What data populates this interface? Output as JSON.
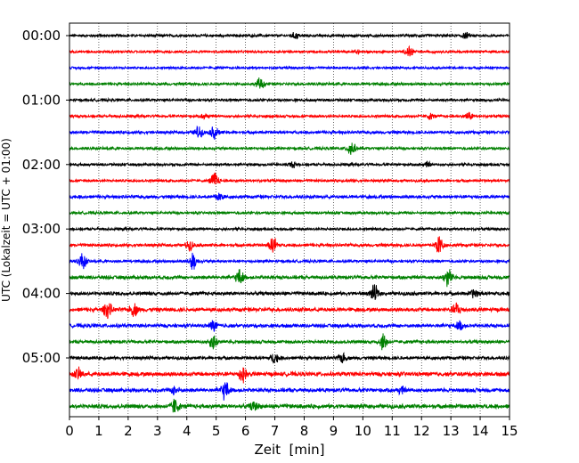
{
  "chart_data": {
    "type": "line",
    "title": "",
    "xlabel": "Zeit  [min]",
    "ylabel": "UTC (Lokalzeit = UTC + 01:00)",
    "xlim": [
      0,
      15
    ],
    "x_ticks": [
      "0",
      "1",
      "2",
      "3",
      "4",
      "5",
      "6",
      "7",
      "8",
      "9",
      "10",
      "11",
      "12",
      "13",
      "14",
      "15"
    ],
    "y_tick_labels": [
      "00:00",
      "01:00",
      "02:00",
      "03:00",
      "04:00",
      "05:00"
    ],
    "grid": "vertical dotted",
    "colors": [
      "#000000",
      "#ff0000",
      "#0000ff",
      "#008000"
    ],
    "rows": [
      {
        "time": "00:00",
        "color": "#000000",
        "amplitude": 0.16,
        "events": [
          {
            "x": 7.7,
            "amp": 0.35
          },
          {
            "x": 13.5,
            "amp": 0.3
          }
        ]
      },
      {
        "time": "00:15",
        "color": "#ff0000",
        "amplitude": 0.14,
        "events": [
          {
            "x": 11.6,
            "amp": 0.75
          },
          {
            "x": 9.8,
            "amp": 0.25
          }
        ]
      },
      {
        "time": "00:30",
        "color": "#0000ff",
        "amplitude": 0.14,
        "events": []
      },
      {
        "time": "00:45",
        "color": "#008000",
        "amplitude": 0.16,
        "events": [
          {
            "x": 6.5,
            "amp": 0.7
          }
        ]
      },
      {
        "time": "01:00",
        "color": "#000000",
        "amplitude": 0.16,
        "events": []
      },
      {
        "time": "01:15",
        "color": "#ff0000",
        "amplitude": 0.16,
        "events": [
          {
            "x": 4.6,
            "amp": 0.3
          },
          {
            "x": 12.3,
            "amp": 0.3
          },
          {
            "x": 13.6,
            "amp": 0.45
          }
        ]
      },
      {
        "time": "01:30",
        "color": "#0000ff",
        "amplitude": 0.18,
        "events": [
          {
            "x": 4.4,
            "amp": 0.7
          },
          {
            "x": 4.95,
            "amp": 0.8
          }
        ]
      },
      {
        "time": "01:45",
        "color": "#008000",
        "amplitude": 0.16,
        "events": [
          {
            "x": 9.6,
            "amp": 1.0
          }
        ]
      },
      {
        "time": "02:00",
        "color": "#000000",
        "amplitude": 0.16,
        "events": [
          {
            "x": 7.6,
            "amp": 0.3
          },
          {
            "x": 12.2,
            "amp": 0.25
          }
        ]
      },
      {
        "time": "02:15",
        "color": "#ff0000",
        "amplitude": 0.16,
        "events": [
          {
            "x": 4.95,
            "amp": 1.05
          }
        ]
      },
      {
        "time": "02:30",
        "color": "#0000ff",
        "amplitude": 0.2,
        "events": [
          {
            "x": 5.1,
            "amp": 0.55
          }
        ]
      },
      {
        "time": "02:45",
        "color": "#008000",
        "amplitude": 0.16,
        "events": []
      },
      {
        "time": "03:00",
        "color": "#000000",
        "amplitude": 0.16,
        "events": []
      },
      {
        "time": "03:15",
        "color": "#ff0000",
        "amplitude": 0.18,
        "events": [
          {
            "x": 4.1,
            "amp": 0.55
          },
          {
            "x": 6.95,
            "amp": 1.0
          },
          {
            "x": 12.6,
            "amp": 1.2
          }
        ]
      },
      {
        "time": "03:30",
        "color": "#0000ff",
        "amplitude": 0.16,
        "events": [
          {
            "x": 0.45,
            "amp": 1.0
          },
          {
            "x": 4.2,
            "amp": 1.1
          }
        ]
      },
      {
        "time": "03:45",
        "color": "#008000",
        "amplitude": 0.22,
        "events": [
          {
            "x": 5.8,
            "amp": 0.9
          },
          {
            "x": 12.9,
            "amp": 1.1
          }
        ]
      },
      {
        "time": "04:00",
        "color": "#000000",
        "amplitude": 0.22,
        "events": [
          {
            "x": 10.4,
            "amp": 0.95
          },
          {
            "x": 13.8,
            "amp": 0.5
          }
        ]
      },
      {
        "time": "04:15",
        "color": "#ff0000",
        "amplitude": 0.24,
        "events": [
          {
            "x": 1.3,
            "amp": 1.0
          },
          {
            "x": 2.2,
            "amp": 0.7
          },
          {
            "x": 13.2,
            "amp": 0.8
          }
        ]
      },
      {
        "time": "04:30",
        "color": "#0000ff",
        "amplitude": 0.22,
        "events": [
          {
            "x": 4.9,
            "amp": 0.6
          },
          {
            "x": 13.3,
            "amp": 0.5
          }
        ]
      },
      {
        "time": "04:45",
        "color": "#008000",
        "amplitude": 0.2,
        "events": [
          {
            "x": 4.9,
            "amp": 0.9
          },
          {
            "x": 10.7,
            "amp": 1.0
          }
        ]
      },
      {
        "time": "05:00",
        "color": "#000000",
        "amplitude": 0.2,
        "events": [
          {
            "x": 7.0,
            "amp": 0.6
          },
          {
            "x": 9.3,
            "amp": 0.55
          }
        ]
      },
      {
        "time": "05:15",
        "color": "#ff0000",
        "amplitude": 0.26,
        "events": [
          {
            "x": 0.3,
            "amp": 0.6
          },
          {
            "x": 5.9,
            "amp": 1.0
          }
        ]
      },
      {
        "time": "05:30",
        "color": "#0000ff",
        "amplitude": 0.24,
        "events": [
          {
            "x": 5.3,
            "amp": 1.15
          },
          {
            "x": 3.6,
            "amp": 0.5
          },
          {
            "x": 11.3,
            "amp": 0.4
          }
        ]
      },
      {
        "time": "05:45",
        "color": "#008000",
        "amplitude": 0.26,
        "events": [
          {
            "x": 3.6,
            "amp": 0.9
          },
          {
            "x": 6.3,
            "amp": 0.45
          }
        ]
      }
    ]
  }
}
